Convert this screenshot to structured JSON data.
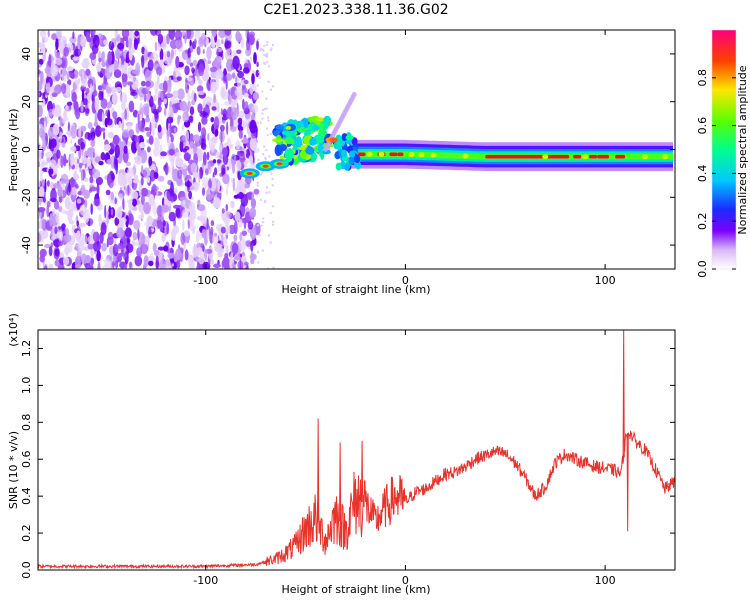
{
  "title": "C2E1.2023.338.11.36.G02",
  "chart_data": [
    {
      "type": "heatmap",
      "xlabel": "Height of straight line (km)",
      "ylabel": "Frequency (Hz)",
      "xlim": [
        -184,
        135
      ],
      "ylim": [
        -50,
        50
      ],
      "xticks": [
        -100,
        0,
        100
      ],
      "yticks": [
        -40,
        -20,
        0,
        20,
        40
      ],
      "colorbar": {
        "label": "Normalized spectral amplitude",
        "range": [
          0,
          1
        ],
        "ticks": [
          0.0,
          0.2,
          0.4,
          0.6,
          0.8
        ]
      },
      "features": {
        "noise_region_x": [
          -184,
          -74
        ],
        "lower_tail": [
          [
            -78,
            -10
          ],
          [
            -70,
            -7
          ],
          [
            -63,
            -6
          ]
        ],
        "burst_region": {
          "x": [
            -64,
            -38
          ],
          "y": [
            -6,
            10
          ]
        },
        "drifting_feature": {
          "x": [
            -40,
            -25
          ],
          "y": [
            0,
            24
          ]
        },
        "carrier_line_freq_hz": [
          [
            -28,
            -2
          ],
          [
            0,
            -2
          ],
          [
            40,
            -3
          ],
          [
            100,
            -3
          ],
          [
            135,
            -3
          ]
        ]
      }
    },
    {
      "type": "line",
      "xlabel": "Height of straight line (km)",
      "ylabel": "SNR (10 * v/v)",
      "yscale_label": "(x10⁴)",
      "xlim": [
        -184,
        135
      ],
      "ylim": [
        0,
        1.3
      ],
      "xticks": [
        -100,
        0,
        100
      ],
      "yticks": [
        0.0,
        0.2,
        0.4,
        0.6,
        0.8,
        1.0,
        1.2
      ],
      "color": "#e8332b",
      "series": [
        {
          "x": [
            -184,
            -150,
            -100,
            -75,
            -65,
            -60,
            -55,
            -50,
            -45,
            -40,
            -35,
            -30,
            -25,
            -20,
            -15,
            -10,
            -5,
            0,
            5,
            10,
            15,
            20,
            25,
            30,
            35,
            40,
            45,
            50,
            55,
            60,
            65,
            70,
            75,
            80,
            85,
            90,
            95,
            100,
            105,
            108,
            110,
            112,
            115,
            120,
            125,
            130,
            135
          ],
          "y": [
            0.02,
            0.02,
            0.02,
            0.03,
            0.06,
            0.09,
            0.13,
            0.22,
            0.28,
            0.16,
            0.3,
            0.21,
            0.38,
            0.36,
            0.26,
            0.34,
            0.4,
            0.37,
            0.42,
            0.44,
            0.48,
            0.52,
            0.53,
            0.56,
            0.6,
            0.62,
            0.64,
            0.63,
            0.58,
            0.5,
            0.4,
            0.45,
            0.58,
            0.63,
            0.6,
            0.58,
            0.56,
            0.55,
            0.54,
            0.52,
            0.7,
            0.75,
            0.7,
            0.65,
            0.55,
            0.44,
            0.48
          ]
        }
      ],
      "spikes": [
        {
          "x": -44,
          "y": 0.82
        },
        {
          "x": -22,
          "y": 0.7
        },
        {
          "x": -33,
          "y": 0.69
        },
        {
          "x": 109,
          "y": 1.3
        },
        {
          "x": 111,
          "y": 0.21
        }
      ]
    }
  ]
}
